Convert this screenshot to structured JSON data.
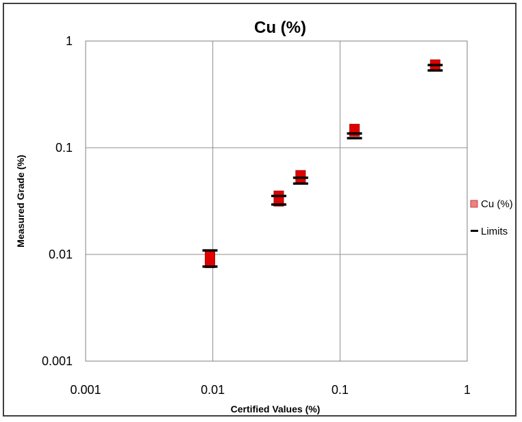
{
  "chart_data": {
    "type": "scatter",
    "title": "Cu (%)",
    "xlabel": "Certified Values (%)",
    "ylabel": "Measured Grade (%)",
    "xscale": "log",
    "yscale": "log",
    "xlim": [
      0.001,
      1
    ],
    "ylim": [
      0.001,
      1
    ],
    "x_tick_labels": [
      "0.001",
      "0.01",
      "0.1",
      "1"
    ],
    "y_tick_labels": [
      "0.001",
      "0.01",
      "0.1",
      "1"
    ],
    "grid": true,
    "legend_position": "right",
    "series": [
      {
        "name": "Cu (%)",
        "marker": "square",
        "color": "#e00000",
        "legend_color": "#f08080",
        "points": [
          {
            "x": 0.0095,
            "y": [
              0.0082,
              0.0098
            ]
          },
          {
            "x": 0.033,
            "y": [
              0.031,
              0.036
            ]
          },
          {
            "x": 0.049,
            "y": [
              0.051,
              0.056
            ]
          },
          {
            "x": 0.13,
            "y": [
              0.14,
              0.152
            ]
          },
          {
            "x": 0.56,
            "y": [
              0.58,
              0.61
            ]
          }
        ]
      },
      {
        "name": "Limits",
        "marker": "dash",
        "color": "#000000",
        "points": [
          {
            "x": 0.0095,
            "low": 0.0077,
            "high": 0.0109
          },
          {
            "x": 0.033,
            "low": 0.0294,
            "high": 0.0353
          },
          {
            "x": 0.049,
            "low": 0.0462,
            "high": 0.0523
          },
          {
            "x": 0.13,
            "low": 0.123,
            "high": 0.136
          },
          {
            "x": 0.56,
            "low": 0.53,
            "high": 0.595
          }
        ]
      }
    ]
  }
}
